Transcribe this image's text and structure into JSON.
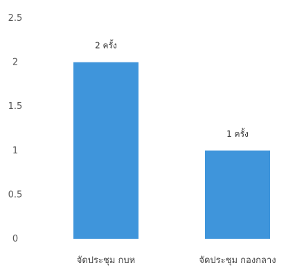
{
  "chart_data": {
    "type": "bar",
    "categories": [
      "จัดประชุม กบห",
      "จัดประชุม กองกลาง"
    ],
    "values": [
      2,
      1
    ],
    "data_labels": [
      "2 ครั้ง",
      "1 ครั้ง"
    ],
    "ylim": [
      0,
      2.5
    ],
    "yticks": [
      "0",
      "0.5",
      "1",
      "1.5",
      "2",
      "2.5"
    ],
    "grid": false,
    "legend": "none",
    "bar_color": "#3f95db",
    "title": "",
    "xlabel": "",
    "ylabel": ""
  }
}
